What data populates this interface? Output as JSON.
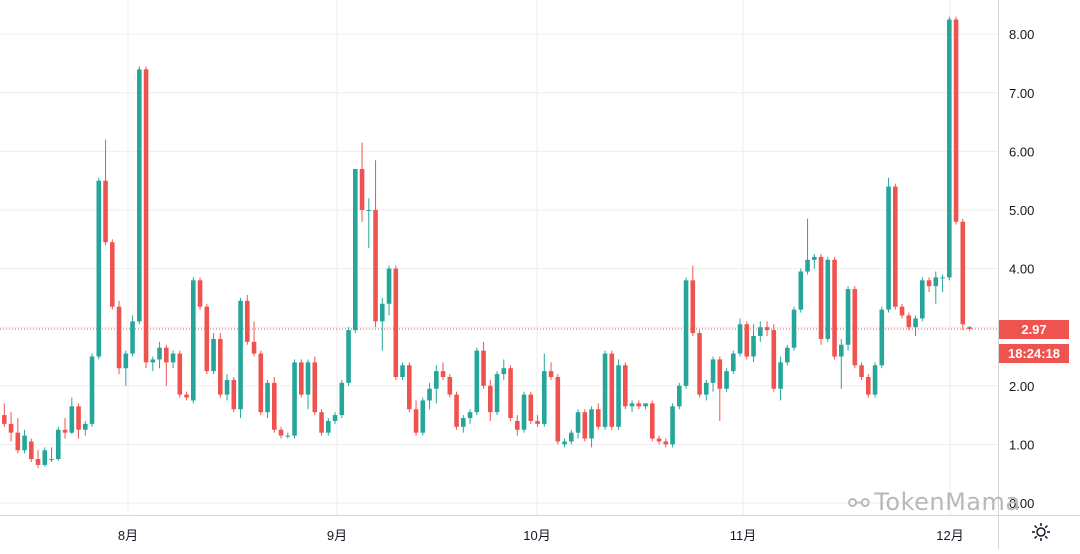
{
  "colors": {
    "up": "#26a69a",
    "down": "#ef5350",
    "grid": "#eeeeee",
    "axis_text": "#131722",
    "axis_line": "#d6d6d6",
    "price_line": "#ef5350"
  },
  "chart_data": {
    "type": "candlestick",
    "x_tick_labels": [
      "8月",
      "9月",
      "10月",
      "11月",
      "12月"
    ],
    "y_tick_labels": [
      "0.00",
      "1.00",
      "2.00",
      "3.00",
      "4.00",
      "5.00",
      "6.00",
      "7.00",
      "8.00"
    ],
    "ylim": [
      -0.3,
      8.6
    ],
    "grid": true,
    "last_price": "2.97",
    "countdown": "18:24:18",
    "candles": [
      [
        1.5,
        1.7,
        1.3,
        1.35
      ],
      [
        1.35,
        1.55,
        1.05,
        1.2
      ],
      [
        1.2,
        1.45,
        0.85,
        0.9
      ],
      [
        0.9,
        1.25,
        0.85,
        1.15
      ],
      [
        1.05,
        1.1,
        0.7,
        0.75
      ],
      [
        0.75,
        0.9,
        0.6,
        0.65
      ],
      [
        0.65,
        0.95,
        0.62,
        0.9
      ],
      [
        0.75,
        0.95,
        0.7,
        0.75
      ],
      [
        0.75,
        1.3,
        0.72,
        1.25
      ],
      [
        1.25,
        1.45,
        1.1,
        1.2
      ],
      [
        1.2,
        1.8,
        1.18,
        1.65
      ],
      [
        1.65,
        1.7,
        1.1,
        1.25
      ],
      [
        1.25,
        1.4,
        1.15,
        1.35
      ],
      [
        1.35,
        2.55,
        1.3,
        2.5
      ],
      [
        2.5,
        5.55,
        2.45,
        5.5
      ],
      [
        5.5,
        6.2,
        4.4,
        4.45
      ],
      [
        4.45,
        4.5,
        3.3,
        3.35
      ],
      [
        3.35,
        3.45,
        2.2,
        2.3
      ],
      [
        2.3,
        2.6,
        2.0,
        2.55
      ],
      [
        2.55,
        3.2,
        2.5,
        3.1
      ],
      [
        3.1,
        7.45,
        3.05,
        7.4
      ],
      [
        7.4,
        7.45,
        2.3,
        2.4
      ],
      [
        2.4,
        2.5,
        2.25,
        2.45
      ],
      [
        2.45,
        2.75,
        2.3,
        2.65
      ],
      [
        2.65,
        2.7,
        2.0,
        2.4
      ],
      [
        2.4,
        2.6,
        2.3,
        2.55
      ],
      [
        2.55,
        2.6,
        1.8,
        1.85
      ],
      [
        1.85,
        1.9,
        1.75,
        1.8
      ],
      [
        1.75,
        3.85,
        1.7,
        3.8
      ],
      [
        3.8,
        3.85,
        3.3,
        3.35
      ],
      [
        3.35,
        3.4,
        2.2,
        2.25
      ],
      [
        2.25,
        2.9,
        2.2,
        2.8
      ],
      [
        2.8,
        2.9,
        1.8,
        1.85
      ],
      [
        1.85,
        2.2,
        1.75,
        2.1
      ],
      [
        2.1,
        2.15,
        1.55,
        1.6
      ],
      [
        1.6,
        3.5,
        1.45,
        3.45
      ],
      [
        3.45,
        3.55,
        2.7,
        2.75
      ],
      [
        2.75,
        3.1,
        2.5,
        2.55
      ],
      [
        2.55,
        2.6,
        1.5,
        1.55
      ],
      [
        1.55,
        2.1,
        1.45,
        2.05
      ],
      [
        2.05,
        2.15,
        1.2,
        1.25
      ],
      [
        1.25,
        1.3,
        1.1,
        1.15
      ],
      [
        1.15,
        1.2,
        1.1,
        1.15
      ],
      [
        1.15,
        2.45,
        1.1,
        2.4
      ],
      [
        2.4,
        2.45,
        1.8,
        1.85
      ],
      [
        1.85,
        2.45,
        1.6,
        2.4
      ],
      [
        2.4,
        2.5,
        1.5,
        1.55
      ],
      [
        1.55,
        1.6,
        1.15,
        1.2
      ],
      [
        1.2,
        1.45,
        1.15,
        1.4
      ],
      [
        1.4,
        1.55,
        1.35,
        1.5
      ],
      [
        1.5,
        2.1,
        1.45,
        2.05
      ],
      [
        2.05,
        3.0,
        2.0,
        2.95
      ],
      [
        2.95,
        5.7,
        2.9,
        5.7
      ],
      [
        5.7,
        6.15,
        4.8,
        5.0
      ],
      [
        5.0,
        5.2,
        4.35,
        5.0
      ],
      [
        5.0,
        5.85,
        3.0,
        3.1
      ],
      [
        3.1,
        3.5,
        2.6,
        3.4
      ],
      [
        3.4,
        4.05,
        3.2,
        4.0
      ],
      [
        4.0,
        4.05,
        2.1,
        2.15
      ],
      [
        2.15,
        2.4,
        2.1,
        2.35
      ],
      [
        2.35,
        2.4,
        1.55,
        1.6
      ],
      [
        1.6,
        1.75,
        1.15,
        1.2
      ],
      [
        1.2,
        1.8,
        1.15,
        1.75
      ],
      [
        1.75,
        2.05,
        1.6,
        1.95
      ],
      [
        1.95,
        2.35,
        1.7,
        2.25
      ],
      [
        2.25,
        2.4,
        2.1,
        2.15
      ],
      [
        2.15,
        2.2,
        1.8,
        1.85
      ],
      [
        1.85,
        1.9,
        1.25,
        1.3
      ],
      [
        1.3,
        1.5,
        1.2,
        1.45
      ],
      [
        1.45,
        1.6,
        1.35,
        1.55
      ],
      [
        1.55,
        2.65,
        1.5,
        2.6
      ],
      [
        2.6,
        2.75,
        1.95,
        2.0
      ],
      [
        2.0,
        2.1,
        1.4,
        1.55
      ],
      [
        1.55,
        2.25,
        1.5,
        2.2
      ],
      [
        2.2,
        2.45,
        2.1,
        2.3
      ],
      [
        2.3,
        2.35,
        1.4,
        1.45
      ],
      [
        1.4,
        1.5,
        1.15,
        1.25
      ],
      [
        1.25,
        1.9,
        1.2,
        1.85
      ],
      [
        1.85,
        1.9,
        1.35,
        1.4
      ],
      [
        1.4,
        1.5,
        1.3,
        1.35
      ],
      [
        1.35,
        2.55,
        1.3,
        2.25
      ],
      [
        2.25,
        2.4,
        2.1,
        2.15
      ],
      [
        2.15,
        2.2,
        1.0,
        1.05
      ],
      [
        1.0,
        1.1,
        0.95,
        1.05
      ],
      [
        1.05,
        1.25,
        1.0,
        1.2
      ],
      [
        1.2,
        1.6,
        1.1,
        1.55
      ],
      [
        1.55,
        1.6,
        1.05,
        1.1
      ],
      [
        1.1,
        1.65,
        0.95,
        1.6
      ],
      [
        1.6,
        1.7,
        1.25,
        1.3
      ],
      [
        1.3,
        2.6,
        1.25,
        2.55
      ],
      [
        2.55,
        2.6,
        1.25,
        1.3
      ],
      [
        1.3,
        2.45,
        1.25,
        2.35
      ],
      [
        2.35,
        2.4,
        1.6,
        1.65
      ],
      [
        1.65,
        1.75,
        1.55,
        1.7
      ],
      [
        1.7,
        1.75,
        1.6,
        1.65
      ],
      [
        1.65,
        1.7,
        1.6,
        1.7
      ],
      [
        1.7,
        1.75,
        1.05,
        1.1
      ],
      [
        1.1,
        1.15,
        1.0,
        1.05
      ],
      [
        1.05,
        1.1,
        0.95,
        1.0
      ],
      [
        1.0,
        1.7,
        0.95,
        1.65
      ],
      [
        1.65,
        2.05,
        1.6,
        2.0
      ],
      [
        2.0,
        3.85,
        1.95,
        3.8
      ],
      [
        3.8,
        4.05,
        2.85,
        2.9
      ],
      [
        2.9,
        2.95,
        1.8,
        1.85
      ],
      [
        1.85,
        2.1,
        1.75,
        2.05
      ],
      [
        2.05,
        2.5,
        1.9,
        2.45
      ],
      [
        2.45,
        2.5,
        1.4,
        1.95
      ],
      [
        1.95,
        2.3,
        1.9,
        2.25
      ],
      [
        2.25,
        2.6,
        2.2,
        2.55
      ],
      [
        2.55,
        3.15,
        2.5,
        3.05
      ],
      [
        3.05,
        3.1,
        2.45,
        2.5
      ],
      [
        2.5,
        3.05,
        2.4,
        2.85
      ],
      [
        2.85,
        3.1,
        2.75,
        3.0
      ],
      [
        3.0,
        3.1,
        2.85,
        2.95
      ],
      [
        2.95,
        3.05,
        1.9,
        1.95
      ],
      [
        1.95,
        2.5,
        1.75,
        2.4
      ],
      [
        2.4,
        2.7,
        2.35,
        2.65
      ],
      [
        2.65,
        3.35,
        2.6,
        3.3
      ],
      [
        3.3,
        4.0,
        3.25,
        3.95
      ],
      [
        3.95,
        4.85,
        3.9,
        4.15
      ],
      [
        4.15,
        4.25,
        4.0,
        4.2
      ],
      [
        4.2,
        4.25,
        2.7,
        2.8
      ],
      [
        2.8,
        4.2,
        2.75,
        4.15
      ],
      [
        4.15,
        4.2,
        2.45,
        2.5
      ],
      [
        2.5,
        2.8,
        1.95,
        2.7
      ],
      [
        2.7,
        3.7,
        2.6,
        3.65
      ],
      [
        3.65,
        3.7,
        2.3,
        2.35
      ],
      [
        2.35,
        2.4,
        2.1,
        2.15
      ],
      [
        2.15,
        2.2,
        1.8,
        1.85
      ],
      [
        1.85,
        2.4,
        1.8,
        2.35
      ],
      [
        2.35,
        3.35,
        2.3,
        3.3
      ],
      [
        3.3,
        5.55,
        3.25,
        5.4
      ],
      [
        5.4,
        5.45,
        3.3,
        3.35
      ],
      [
        3.35,
        3.4,
        3.15,
        3.2
      ],
      [
        3.2,
        3.25,
        2.95,
        3.0
      ],
      [
        3.0,
        3.2,
        2.85,
        3.15
      ],
      [
        3.15,
        3.85,
        3.1,
        3.8
      ],
      [
        3.8,
        3.85,
        3.6,
        3.7
      ],
      [
        3.7,
        3.95,
        3.4,
        3.85
      ],
      [
        3.85,
        3.9,
        3.6,
        3.85
      ],
      [
        3.85,
        8.3,
        3.8,
        8.25
      ],
      [
        8.25,
        8.3,
        4.75,
        4.8
      ],
      [
        4.8,
        4.85,
        2.95,
        3.05
      ],
      [
        3.0,
        3.02,
        2.94,
        2.97
      ]
    ]
  }
}
